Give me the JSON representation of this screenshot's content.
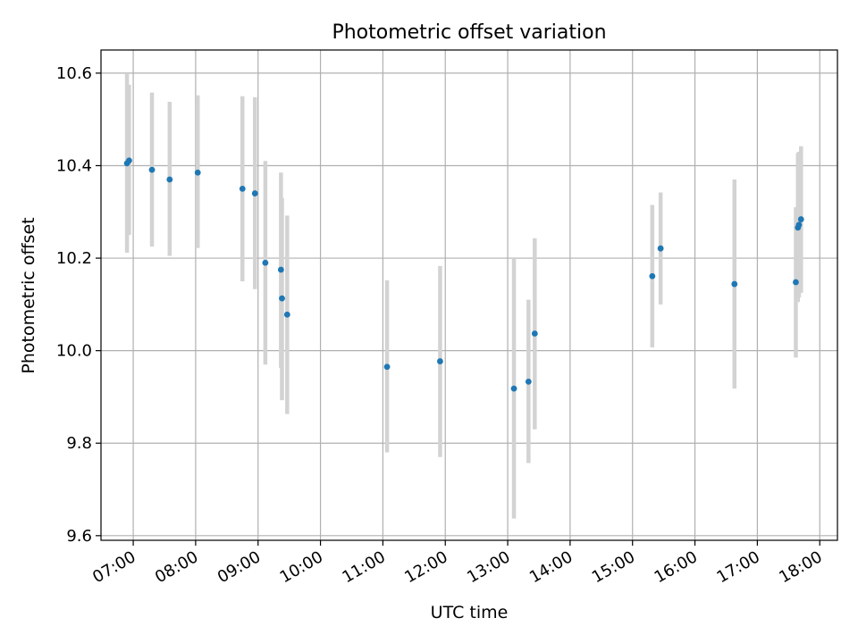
{
  "chart_data": {
    "type": "scatter",
    "title": "Photometric offset variation",
    "xlabel": "UTC time",
    "ylabel": "Photometric offset",
    "x_ticks": [
      "07:00",
      "08:00",
      "09:00",
      "10:00",
      "11:00",
      "12:00",
      "13:00",
      "14:00",
      "15:00",
      "16:00",
      "17:00",
      "18:00"
    ],
    "y_ticks": [
      "9.6",
      "9.8",
      "10.0",
      "10.2",
      "10.4",
      "10.6"
    ],
    "xlim": [
      "06:29",
      "18:17"
    ],
    "ylim": [
      9.59,
      10.65
    ],
    "grid": true,
    "marker_color": "#1f77b4",
    "errorbar_color": "#d3d3d3",
    "series": [
      {
        "points": [
          {
            "x": "06:54",
            "y": 10.405,
            "ylow": 10.212,
            "yhigh": 10.598
          },
          {
            "x": "06:56",
            "y": 10.411,
            "ylow": 10.25,
            "yhigh": 10.575
          },
          {
            "x": "07:18",
            "y": 10.391,
            "ylow": 10.225,
            "yhigh": 10.558
          },
          {
            "x": "07:35",
            "y": 10.37,
            "ylow": 10.205,
            "yhigh": 10.538
          },
          {
            "x": "08:02",
            "y": 10.385,
            "ylow": 10.222,
            "yhigh": 10.552
          },
          {
            "x": "08:45",
            "y": 10.35,
            "ylow": 10.15,
            "yhigh": 10.55
          },
          {
            "x": "08:57",
            "y": 10.34,
            "ylow": 10.133,
            "yhigh": 10.548
          },
          {
            "x": "09:07",
            "y": 10.19,
            "ylow": 9.97,
            "yhigh": 10.41
          },
          {
            "x": "09:22",
            "y": 10.175,
            "ylow": 9.963,
            "yhigh": 10.385
          },
          {
            "x": "09:23",
            "y": 10.113,
            "ylow": 9.893,
            "yhigh": 10.33
          },
          {
            "x": "09:28",
            "y": 10.078,
            "ylow": 9.863,
            "yhigh": 10.292
          },
          {
            "x": "11:04",
            "y": 9.965,
            "ylow": 9.78,
            "yhigh": 10.152
          },
          {
            "x": "11:55",
            "y": 9.977,
            "ylow": 9.77,
            "yhigh": 10.183
          },
          {
            "x": "13:06",
            "y": 9.918,
            "ylow": 9.637,
            "yhigh": 10.2
          },
          {
            "x": "13:20",
            "y": 9.933,
            "ylow": 9.757,
            "yhigh": 10.11
          },
          {
            "x": "13:26",
            "y": 10.037,
            "ylow": 9.83,
            "yhigh": 10.243
          },
          {
            "x": "15:19",
            "y": 10.161,
            "ylow": 10.007,
            "yhigh": 10.315
          },
          {
            "x": "15:27",
            "y": 10.221,
            "ylow": 10.1,
            "yhigh": 10.342
          },
          {
            "x": "16:38",
            "y": 10.144,
            "ylow": 9.918,
            "yhigh": 10.37
          },
          {
            "x": "17:37",
            "y": 10.148,
            "ylow": 9.985,
            "yhigh": 10.31
          },
          {
            "x": "17:39",
            "y": 10.266,
            "ylow": 10.105,
            "yhigh": 10.427
          },
          {
            "x": "17:40",
            "y": 10.272,
            "ylow": 10.115,
            "yhigh": 10.43
          },
          {
            "x": "17:42",
            "y": 10.284,
            "ylow": 10.125,
            "yhigh": 10.442
          }
        ]
      }
    ]
  }
}
